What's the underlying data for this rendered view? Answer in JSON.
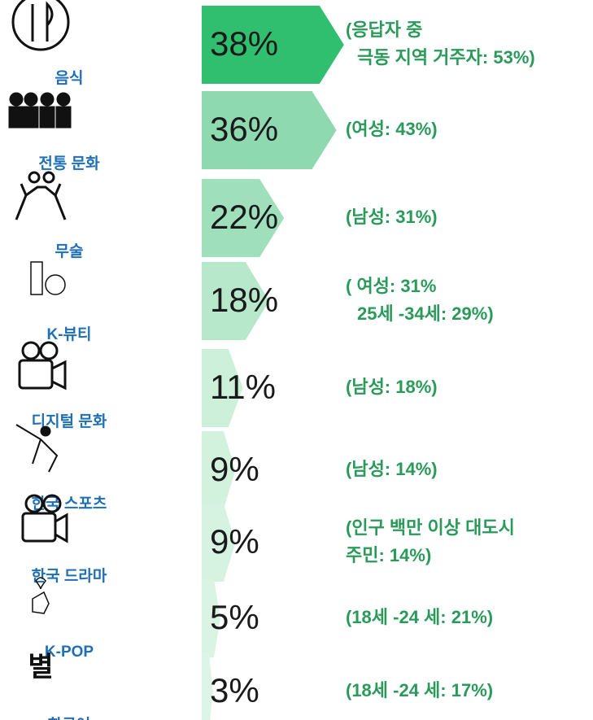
{
  "chart_data": {
    "type": "bar",
    "categories": [
      "음식",
      "전통 문화",
      "무술",
      "K-뷰티",
      "디지털 문화",
      "한국 스포츠",
      "한국 드라마",
      "K-POP",
      "한국어"
    ],
    "values": [
      38,
      36,
      22,
      18,
      11,
      9,
      9,
      5,
      3
    ],
    "value_labels": [
      "38%",
      "36%",
      "22%",
      "18%",
      "11%",
      "9%",
      "9%",
      "5%",
      "3%"
    ],
    "colors": [
      "#2fbf6e",
      "#8fd9b0",
      "#9fdfbb",
      "#b8e8cb",
      "#cdf0da",
      "#d2f2de",
      "#d6f3e1",
      "#d9f4e3",
      "#ddf5e6"
    ],
    "annotations": [
      [
        "(응답자 중",
        "극동 지역 거주자: 53%)"
      ],
      [
        "(여성: 43%)"
      ],
      [
        "(남성: 31%)"
      ],
      [
        "( 여성: 31%",
        "25세 -34세: 29%)"
      ],
      [
        "(남성: 18%)"
      ],
      [
        "(남성: 14%)"
      ],
      [
        "(인구 백만 이상 대도시",
        "주민: 14%)"
      ],
      [
        "(18세 -24 세: 21%)"
      ],
      [
        "(18세 -24 세: 17%)"
      ]
    ]
  }
}
